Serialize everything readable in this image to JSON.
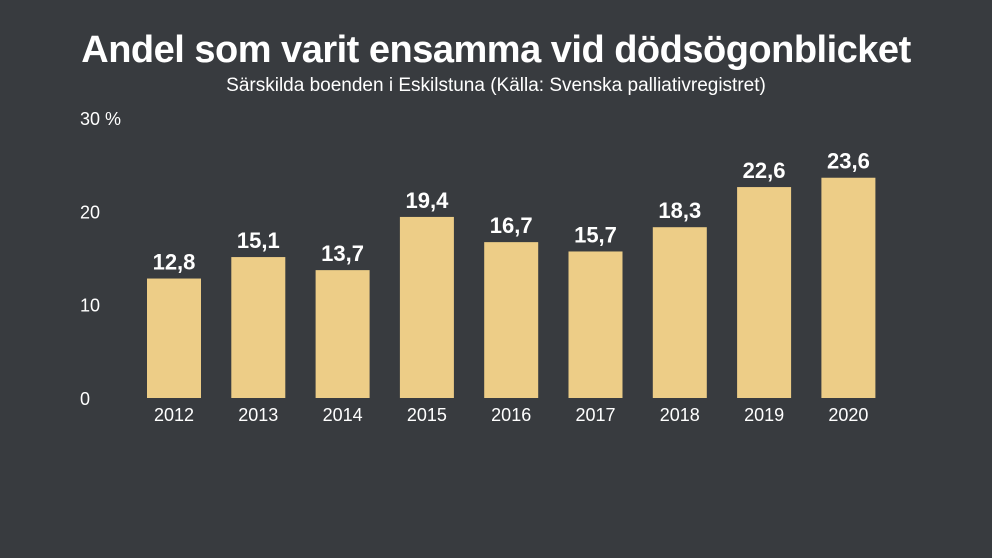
{
  "chart_data": {
    "type": "bar",
    "title": "Andel som varit ensamma vid dödsögonblicket",
    "subtitle": "Särskilda boenden i Eskilstuna (Källa: Svenska palliativregistret)",
    "categories": [
      "2012",
      "2013",
      "2014",
      "2015",
      "2016",
      "2017",
      "2018",
      "2019",
      "2020"
    ],
    "values": [
      12.8,
      15.1,
      13.7,
      19.4,
      16.7,
      15.7,
      18.3,
      22.6,
      23.6
    ],
    "value_labels": [
      "12,8",
      "15,1",
      "13,7",
      "19,4",
      "16,7",
      "15,7",
      "18,3",
      "22,6",
      "23,6"
    ],
    "yticks": [
      {
        "value": 0,
        "label": "0"
      },
      {
        "value": 10,
        "label": "10"
      },
      {
        "value": 20,
        "label": "20"
      },
      {
        "value": 30,
        "label": "30 %"
      }
    ],
    "ylim": [
      0,
      30
    ],
    "grid": false,
    "bar_color": "#edcd87",
    "background_color": "#383b3f"
  }
}
